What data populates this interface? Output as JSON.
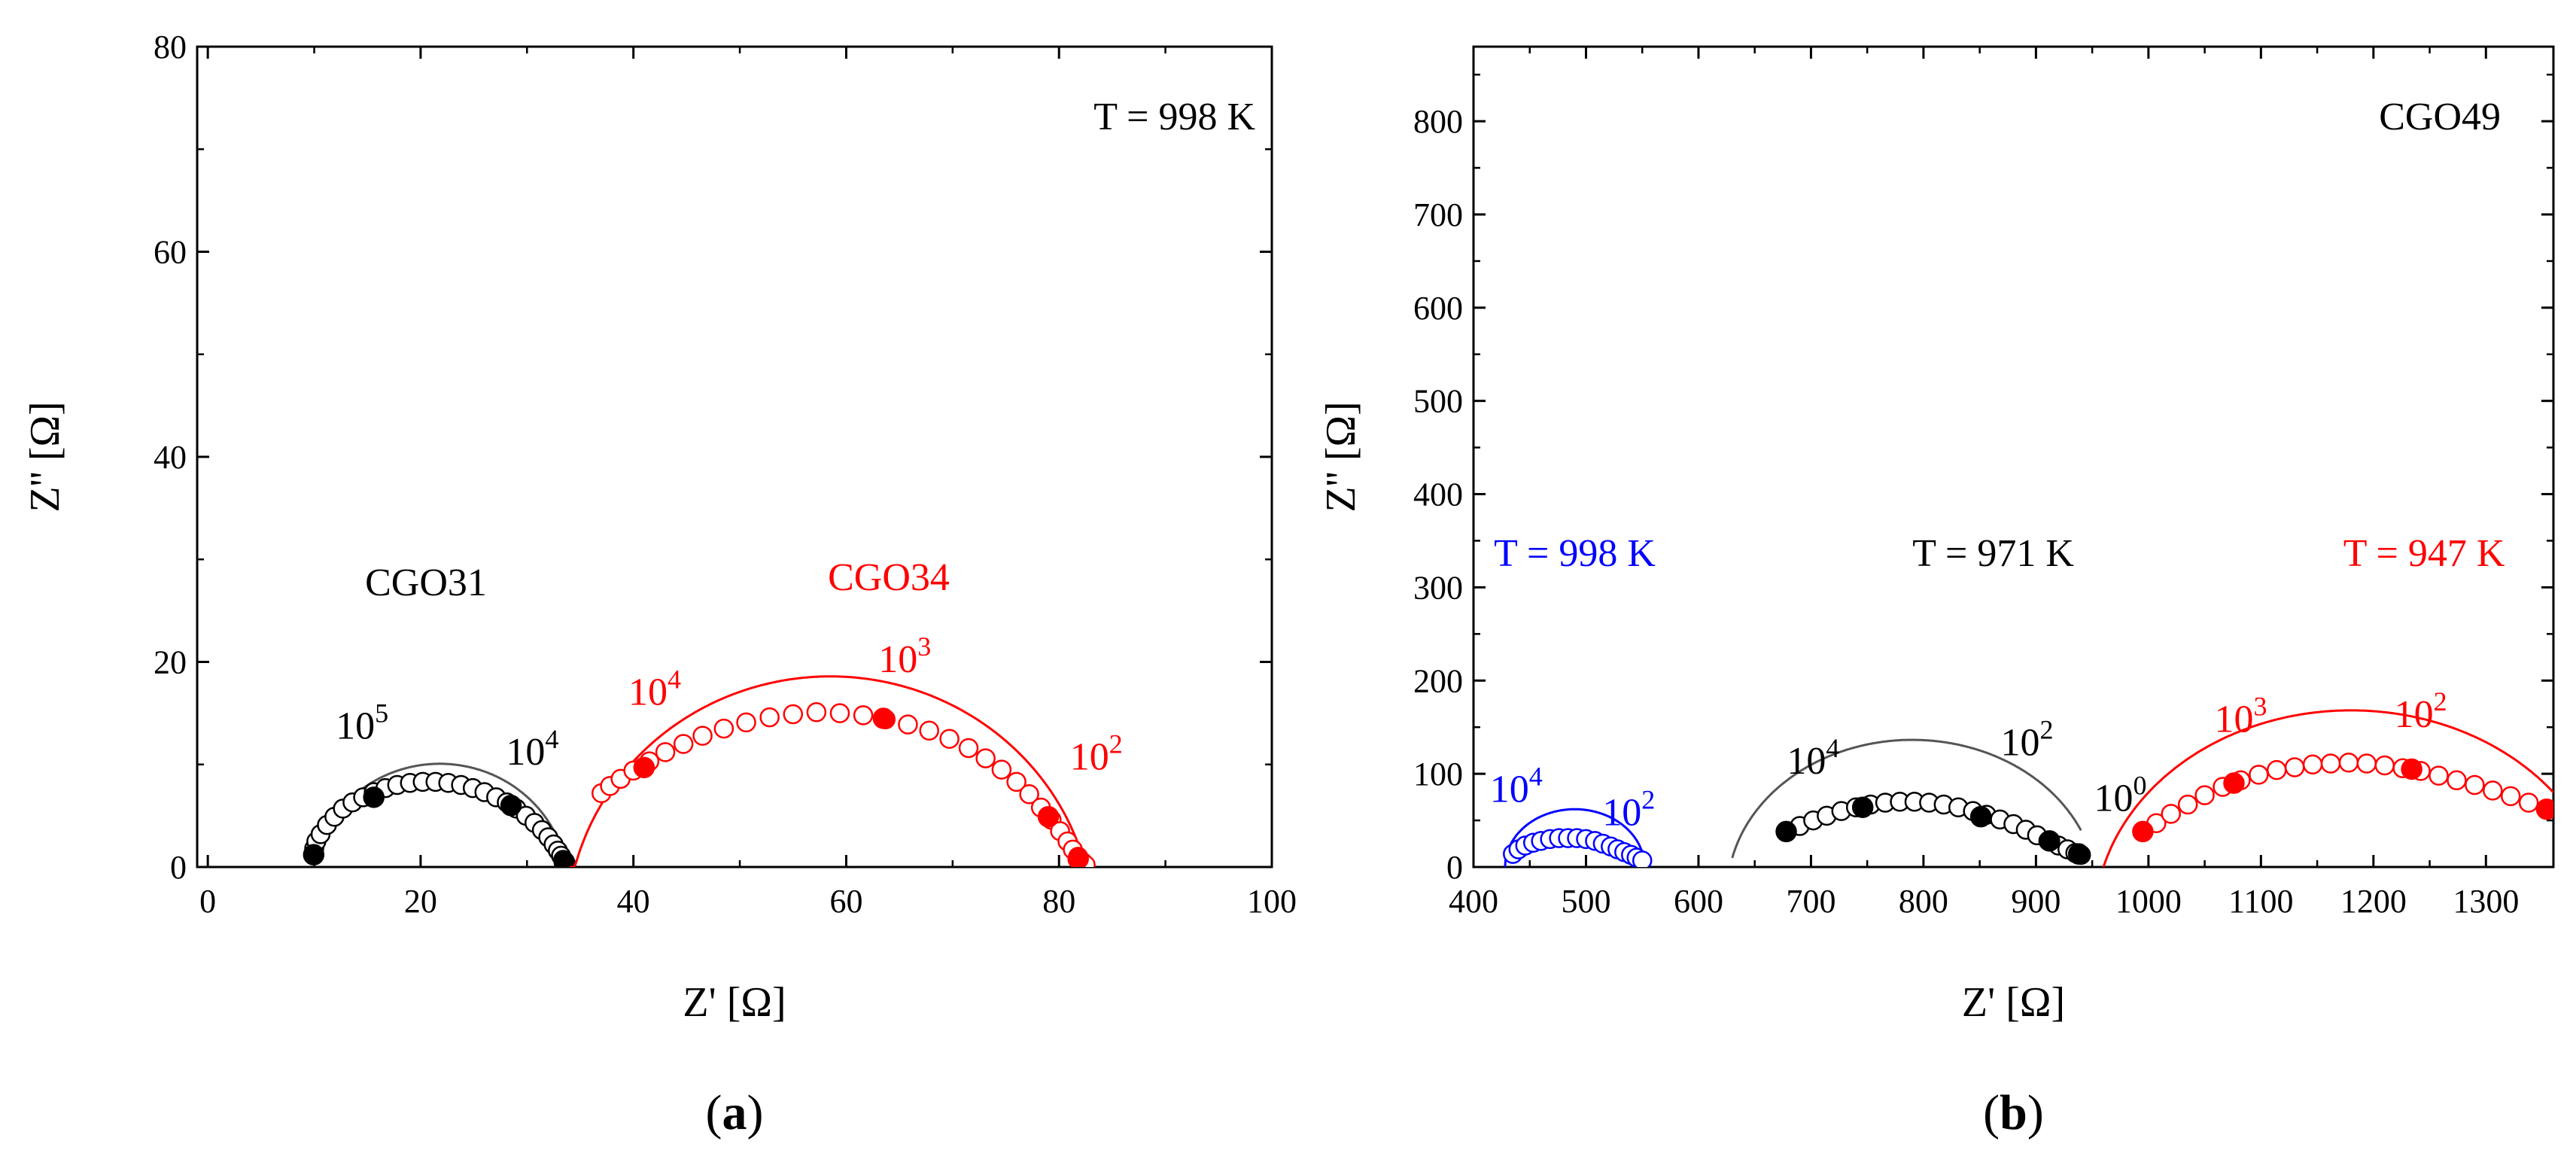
{
  "colors": {
    "black": "#000000",
    "red": "#ff0000",
    "blue": "#0000ff",
    "gray": "#555555"
  },
  "panels": [
    {
      "label_open": "(",
      "label_letter": "a",
      "label_close": ")"
    },
    {
      "label_open": "(",
      "label_letter": "b",
      "label_close": ")"
    }
  ],
  "chart_data": [
    {
      "type": "scatter",
      "title": "",
      "xlabel": "Z' [Ω]",
      "ylabel": "Z'' [Ω]",
      "xlim": [
        -1,
        100
      ],
      "ylim": [
        0,
        80
      ],
      "xticks": [
        0,
        20,
        40,
        60,
        80,
        100
      ],
      "xtick_labels": [
        "0",
        "20",
        "40",
        "60",
        "80",
        "100"
      ],
      "yticks": [
        0,
        20,
        40,
        60,
        80
      ],
      "ytick_labels": [
        "0",
        "20",
        "40",
        "60",
        "80"
      ],
      "grid": false,
      "annotation_temperature": "T = 998 K",
      "series": [
        {
          "name": "CGO31",
          "color": "#000000",
          "arc": {
            "center": 21.8,
            "radius": 11.9,
            "depression": 2.0
          },
          "fit_range": [
            9.95,
            33.7
          ],
          "points": [
            [
              9.95,
              1.2
            ],
            [
              10.0,
              1.8
            ],
            [
              10.2,
              2.5
            ],
            [
              10.6,
              3.2
            ],
            [
              11.2,
              4.1
            ],
            [
              11.9,
              4.9
            ],
            [
              12.7,
              5.7
            ],
            [
              13.6,
              6.3
            ],
            [
              14.6,
              6.8
            ],
            [
              15.6,
              7.3
            ],
            [
              16.7,
              7.7
            ],
            [
              17.8,
              8.0
            ],
            [
              19.0,
              8.2
            ],
            [
              20.2,
              8.3
            ],
            [
              21.4,
              8.3
            ],
            [
              22.6,
              8.2
            ],
            [
              23.8,
              8.0
            ],
            [
              24.9,
              7.7
            ],
            [
              26.0,
              7.3
            ],
            [
              27.1,
              6.8
            ],
            [
              28.1,
              6.3
            ],
            [
              29.0,
              5.7
            ],
            [
              29.9,
              5.0
            ],
            [
              30.7,
              4.3
            ],
            [
              31.4,
              3.6
            ],
            [
              32.0,
              2.9
            ],
            [
              32.5,
              2.2
            ],
            [
              32.9,
              1.6
            ],
            [
              33.2,
              1.1
            ],
            [
              33.4,
              0.7
            ],
            [
              33.6,
              0.4
            ],
            [
              33.7,
              0.2
            ]
          ],
          "filled_points": [
            [
              9.95,
              1.2
            ],
            [
              15.6,
              6.8
            ],
            [
              28.5,
              6.0
            ],
            [
              33.5,
              0.5
            ]
          ],
          "freq_labels": [
            {
              "base": "10",
              "exp": "5",
              "x": 14.5,
              "y": 12.5
            },
            {
              "base": "10",
              "exp": "4",
              "x": 30.5,
              "y": 10.0
            }
          ],
          "label": {
            "text": "CGO31",
            "x": 20.5,
            "y": 26.5
          }
        },
        {
          "name": "CGO34",
          "color": "#ff0000",
          "arc": {
            "center": 58.5,
            "radius": 24.0,
            "depression": 6.2
          },
          "fit_range": [
            34.0,
            82.5
          ],
          "points": [
            [
              37.0,
              7.2
            ],
            [
              37.8,
              7.9
            ],
            [
              38.8,
              8.6
            ],
            [
              40.0,
              9.4
            ],
            [
              41.5,
              10.3
            ],
            [
              43.0,
              11.2
            ],
            [
              44.7,
              12.0
            ],
            [
              46.5,
              12.8
            ],
            [
              48.5,
              13.5
            ],
            [
              50.6,
              14.1
            ],
            [
              52.8,
              14.6
            ],
            [
              55.0,
              14.9
            ],
            [
              57.2,
              15.1
            ],
            [
              59.4,
              15.0
            ],
            [
              61.6,
              14.8
            ],
            [
              63.7,
              14.4
            ],
            [
              65.8,
              13.9
            ],
            [
              67.8,
              13.3
            ],
            [
              69.7,
              12.5
            ],
            [
              71.5,
              11.6
            ],
            [
              73.1,
              10.6
            ],
            [
              74.6,
              9.5
            ],
            [
              76.0,
              8.3
            ],
            [
              77.2,
              7.1
            ],
            [
              78.3,
              5.8
            ],
            [
              79.3,
              4.6
            ],
            [
              80.1,
              3.5
            ],
            [
              80.8,
              2.5
            ],
            [
              81.3,
              1.7
            ],
            [
              81.8,
              1.0
            ],
            [
              82.2,
              0.5
            ],
            [
              82.5,
              0.2
            ]
          ],
          "filled_points": [
            [
              41.0,
              9.7
            ],
            [
              63.5,
              14.5
            ],
            [
              79.0,
              4.9
            ],
            [
              81.8,
              0.8
            ]
          ],
          "freq_labels": [
            {
              "base": "10",
              "exp": "4",
              "x": 42.0,
              "y": 15.8
            },
            {
              "base": "10",
              "exp": "3",
              "x": 65.5,
              "y": 19.0
            },
            {
              "base": "10",
              "exp": "2",
              "x": 83.5,
              "y": 9.5
            }
          ],
          "label": {
            "text": "CGO34",
            "x": 64.0,
            "y": 27.0
          }
        }
      ]
    },
    {
      "type": "scatter",
      "title": "",
      "xlabel": "Z' [Ω]",
      "ylabel": "Z'' [Ω]",
      "xlim": [
        400,
        1360
      ],
      "ylim": [
        0,
        880
      ],
      "xticks": [
        400,
        500,
        600,
        700,
        800,
        900,
        1000,
        1100,
        1200,
        1300
      ],
      "xtick_labels": [
        "400",
        "500",
        "600",
        "700",
        "800",
        "900",
        "1000",
        "1100",
        "1200",
        "1300"
      ],
      "yticks": [
        0,
        100,
        200,
        300,
        400,
        500,
        600,
        700,
        800
      ],
      "ytick_labels": [
        "0",
        "100",
        "200",
        "300",
        "400",
        "500",
        "600",
        "700",
        "800"
      ],
      "grid": false,
      "annotation_sample": "CGO49",
      "series": [
        {
          "name": "T = 998 K",
          "color": "#0000ff",
          "arc": {
            "center": 490,
            "radius": 62,
            "depression": 0
          },
          "fit_range": [
            428,
            552
          ],
          "points": [
            [
              435,
              14
            ],
            [
              440,
              19
            ],
            [
              446,
              23
            ],
            [
              453,
              26
            ],
            [
              460,
              28
            ],
            [
              468,
              30
            ],
            [
              476,
              31
            ],
            [
              484,
              31
            ],
            [
              492,
              31
            ],
            [
              500,
              30
            ],
            [
              508,
              28
            ],
            [
              515,
              25
            ],
            [
              522,
              22
            ],
            [
              528,
              19
            ],
            [
              534,
              16
            ],
            [
              540,
              13
            ],
            [
              545,
              10
            ],
            [
              550,
              7
            ]
          ],
          "filled_points": [],
          "freq_labels": [
            {
              "base": "10",
              "exp": "4",
              "x": 438,
              "y": 70
            },
            {
              "base": "10",
              "exp": "2",
              "x": 538,
              "y": 45
            }
          ],
          "label": {
            "text": "T = 998 K",
            "x": 490,
            "y": 323
          }
        },
        {
          "name": "T = 971 K",
          "color": "#000000",
          "arc": {
            "center": 790,
            "radius": 162,
            "depression": 28
          },
          "fit_range": [
            630,
            940
          ],
          "points": [
            [
              678,
              38
            ],
            [
              690,
              44
            ],
            [
              702,
              50
            ],
            [
              714,
              55
            ],
            [
              727,
              60
            ],
            [
              740,
              64
            ],
            [
              753,
              67
            ],
            [
              766,
              69
            ],
            [
              779,
              70
            ],
            [
              792,
              70
            ],
            [
              805,
              69
            ],
            [
              818,
              67
            ],
            [
              831,
              64
            ],
            [
              844,
              60
            ],
            [
              856,
              56
            ],
            [
              868,
              51
            ],
            [
              880,
              46
            ],
            [
              891,
              40
            ],
            [
              901,
              34
            ],
            [
              911,
              28
            ],
            [
              920,
              23
            ],
            [
              928,
              19
            ],
            [
              935,
              15
            ],
            [
              940,
              13
            ]
          ],
          "filled_points": [
            [
              678,
              38
            ],
            [
              746,
              64
            ],
            [
              851,
              54
            ],
            [
              912,
              28
            ],
            [
              938,
              14
            ]
          ],
          "freq_labels": [
            {
              "base": "10",
              "exp": "4",
              "x": 702,
              "y": 100
            },
            {
              "base": "10",
              "exp": "2",
              "x": 892,
              "y": 120
            },
            {
              "base": "10",
              "exp": "0",
              "x": 975,
              "y": 60
            }
          ],
          "label": {
            "text": "T = 971 K",
            "x": 862,
            "y": 323
          }
        },
        {
          "name": "T = 947 K",
          "color": "#ff0000",
          "arc": {
            "center": 1180,
            "radius": 220,
            "depression": 60
          },
          "fit_range": [
            960,
            1360
          ],
          "points": [
            [
              995,
              38
            ],
            [
              1007,
              47
            ],
            [
              1020,
              57
            ],
            [
              1035,
              67
            ],
            [
              1050,
              77
            ],
            [
              1066,
              86
            ],
            [
              1082,
              93
            ],
            [
              1098,
              99
            ],
            [
              1114,
              104
            ],
            [
              1130,
              107
            ],
            [
              1146,
              110
            ],
            [
              1162,
              111
            ],
            [
              1178,
              112
            ],
            [
              1194,
              111
            ],
            [
              1210,
              109
            ],
            [
              1226,
              106
            ],
            [
              1242,
              103
            ],
            [
              1258,
              98
            ],
            [
              1274,
              93
            ],
            [
              1290,
              88
            ],
            [
              1306,
              82
            ],
            [
              1322,
              76
            ],
            [
              1338,
              69
            ],
            [
              1354,
              62
            ]
          ],
          "filled_points": [
            [
              995,
              38
            ],
            [
              1076,
              90
            ],
            [
              1234,
              105
            ],
            [
              1354,
              62
            ]
          ],
          "freq_labels": [
            {
              "base": "10",
              "exp": "3",
              "x": 1082,
              "y": 145
            },
            {
              "base": "10",
              "exp": "2",
              "x": 1242,
              "y": 150
            }
          ],
          "label": {
            "text": "T = 947 K",
            "x": 1245,
            "y": 323
          }
        }
      ]
    }
  ]
}
